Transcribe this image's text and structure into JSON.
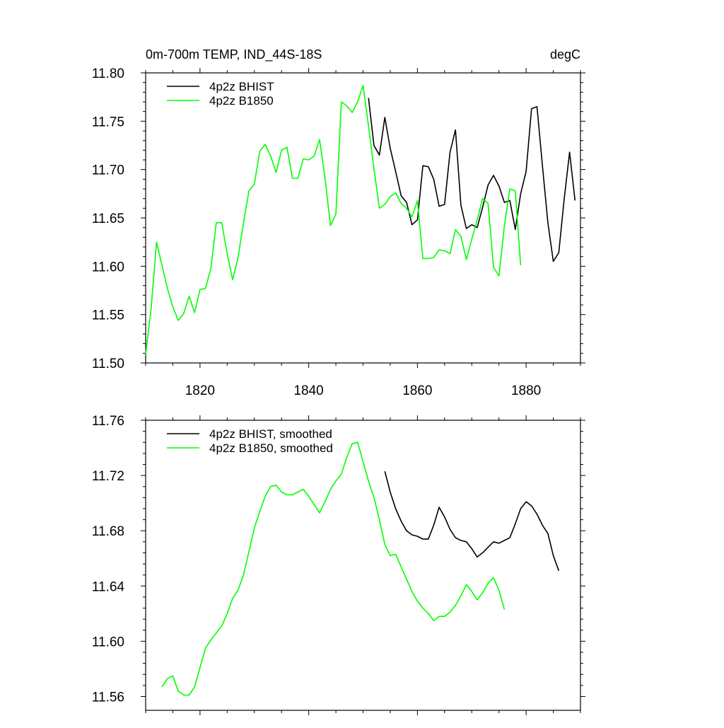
{
  "chart_data": [
    {
      "type": "line",
      "title_left": "0m-700m TEMP, IND_44S-18S",
      "title_right": "degC",
      "xlabel": "",
      "ylabel": "",
      "xlim": [
        1810,
        1890
      ],
      "ylim": [
        11.5,
        11.8
      ],
      "x_ticks": [
        1820,
        1840,
        1860,
        1880
      ],
      "x_tick_labels": [
        "1820",
        "1840",
        "1860",
        "1880"
      ],
      "y_ticks": [
        11.5,
        11.55,
        11.6,
        11.65,
        11.7,
        11.75,
        11.8
      ],
      "y_tick_labels": [
        "11.50",
        "11.55",
        "11.60",
        "11.65",
        "11.70",
        "11.75",
        "11.80"
      ],
      "grid": false,
      "legend_position": "top-left",
      "series": [
        {
          "name": "4p2z BHIST",
          "color": "#000000",
          "x": [
            1851,
            1852,
            1853,
            1854,
            1855,
            1856,
            1857,
            1858,
            1859,
            1860,
            1861,
            1862,
            1863,
            1864,
            1865,
            1866,
            1867,
            1868,
            1869,
            1870,
            1871,
            1872,
            1873,
            1874,
            1875,
            1876,
            1877,
            1878,
            1879,
            1880,
            1881,
            1882,
            1883,
            1884,
            1885,
            1886,
            1887,
            1888,
            1889
          ],
          "values": [
            11.774,
            11.725,
            11.715,
            11.754,
            11.722,
            11.698,
            11.673,
            11.666,
            11.643,
            11.648,
            11.704,
            11.703,
            11.69,
            11.662,
            11.664,
            11.718,
            11.741,
            11.663,
            11.639,
            11.643,
            11.64,
            11.661,
            11.684,
            11.694,
            11.683,
            11.666,
            11.668,
            11.638,
            11.675,
            11.698,
            11.763,
            11.765,
            11.704,
            11.645,
            11.605,
            11.614,
            11.669,
            11.718,
            11.668
          ]
        },
        {
          "name": "4p2z B1850",
          "color": "#00ff00",
          "x": [
            1810,
            1811,
            1812,
            1813,
            1814,
            1815,
            1816,
            1817,
            1818,
            1819,
            1820,
            1821,
            1822,
            1823,
            1824,
            1825,
            1826,
            1827,
            1828,
            1829,
            1830,
            1831,
            1832,
            1833,
            1834,
            1835,
            1836,
            1837,
            1838,
            1839,
            1840,
            1841,
            1842,
            1843,
            1844,
            1845,
            1846,
            1847,
            1848,
            1849,
            1850,
            1851,
            1852,
            1853,
            1854,
            1855,
            1856,
            1857,
            1858,
            1859,
            1860,
            1861,
            1862,
            1863,
            1864,
            1865,
            1866,
            1867,
            1868,
            1869,
            1870,
            1871,
            1872,
            1873,
            1874,
            1875,
            1876,
            1877,
            1878,
            1879
          ],
          "values": [
            11.509,
            11.556,
            11.625,
            11.601,
            11.577,
            11.558,
            11.544,
            11.551,
            11.569,
            11.552,
            11.576,
            11.577,
            11.598,
            11.645,
            11.645,
            11.613,
            11.586,
            11.609,
            11.645,
            11.678,
            11.685,
            11.719,
            11.726,
            11.714,
            11.697,
            11.72,
            11.723,
            11.691,
            11.691,
            11.711,
            11.71,
            11.714,
            11.731,
            11.691,
            11.642,
            11.654,
            11.77,
            11.766,
            11.759,
            11.77,
            11.787,
            11.745,
            11.701,
            11.66,
            11.664,
            11.672,
            11.676,
            11.665,
            11.66,
            11.651,
            11.668,
            11.608,
            11.608,
            11.609,
            11.617,
            11.616,
            11.613,
            11.638,
            11.631,
            11.607,
            11.628,
            11.648,
            11.67,
            11.665,
            11.599,
            11.59,
            11.642,
            11.68,
            11.678,
            11.601
          ],
          "values_note": ""
        }
      ]
    },
    {
      "type": "line",
      "title_left": "",
      "title_right": "",
      "xlabel": "",
      "ylabel": "",
      "xlim": [
        1810,
        1890
      ],
      "ylim": [
        11.55,
        11.76
      ],
      "x_ticks": [
        1820,
        1840,
        1860,
        1880
      ],
      "x_tick_labels": [],
      "y_ticks": [
        11.56,
        11.6,
        11.64,
        11.68,
        11.72,
        11.76
      ],
      "y_tick_labels": [
        "11.56",
        "11.60",
        "11.64",
        "11.68",
        "11.72",
        "11.76"
      ],
      "grid": false,
      "legend_position": "top-left",
      "series": [
        {
          "name": "4p2z BHIST, smoothed",
          "color": "#000000",
          "x": [
            1854,
            1855,
            1856,
            1857,
            1858,
            1859,
            1860,
            1861,
            1862,
            1863,
            1864,
            1865,
            1866,
            1867,
            1868,
            1869,
            1870,
            1871,
            1872,
            1873,
            1874,
            1875,
            1876,
            1877,
            1878,
            1879,
            1880,
            1881,
            1882,
            1883,
            1884,
            1885,
            1886
          ],
          "values": [
            11.723,
            11.708,
            11.696,
            11.687,
            11.68,
            11.677,
            11.676,
            11.674,
            11.674,
            11.684,
            11.697,
            11.69,
            11.681,
            11.675,
            11.673,
            11.672,
            11.667,
            11.661,
            11.664,
            11.668,
            11.672,
            11.671,
            11.673,
            11.675,
            11.685,
            11.696,
            11.701,
            11.698,
            11.692,
            11.684,
            11.678,
            11.662,
            11.651
          ]
        },
        {
          "name": "4p2z B1850, smoothed",
          "color": "#00ff00",
          "x": [
            1813,
            1814,
            1815,
            1816,
            1817,
            1818,
            1819,
            1820,
            1821,
            1822,
            1823,
            1824,
            1825,
            1826,
            1827,
            1828,
            1829,
            1830,
            1831,
            1832,
            1833,
            1834,
            1835,
            1836,
            1837,
            1838,
            1839,
            1840,
            1841,
            1842,
            1843,
            1844,
            1845,
            1846,
            1847,
            1848,
            1849,
            1850,
            1851,
            1852,
            1853,
            1854,
            1855,
            1856,
            1857,
            1858,
            1859,
            1860,
            1861,
            1862,
            1863,
            1864,
            1865,
            1866,
            1867,
            1868,
            1869,
            1870,
            1871,
            1872,
            1873,
            1874,
            1875,
            1876
          ],
          "values": [
            11.567,
            11.573,
            11.575,
            11.564,
            11.561,
            11.561,
            11.567,
            11.581,
            11.595,
            11.601,
            11.606,
            11.611,
            11.62,
            11.631,
            11.637,
            11.648,
            11.665,
            11.682,
            11.694,
            11.705,
            11.712,
            11.713,
            11.708,
            11.706,
            11.706,
            11.708,
            11.71,
            11.705,
            11.699,
            11.693,
            11.701,
            11.71,
            11.716,
            11.721,
            11.733,
            11.743,
            11.744,
            11.73,
            11.716,
            11.704,
            11.688,
            11.67,
            11.662,
            11.663,
            11.654,
            11.645,
            11.636,
            11.629,
            11.624,
            11.62,
            11.615,
            11.618,
            11.618,
            11.621,
            11.626,
            11.633,
            11.641,
            11.636,
            11.63,
            11.635,
            11.642,
            11.646,
            11.637,
            11.623
          ]
        }
      ]
    }
  ]
}
